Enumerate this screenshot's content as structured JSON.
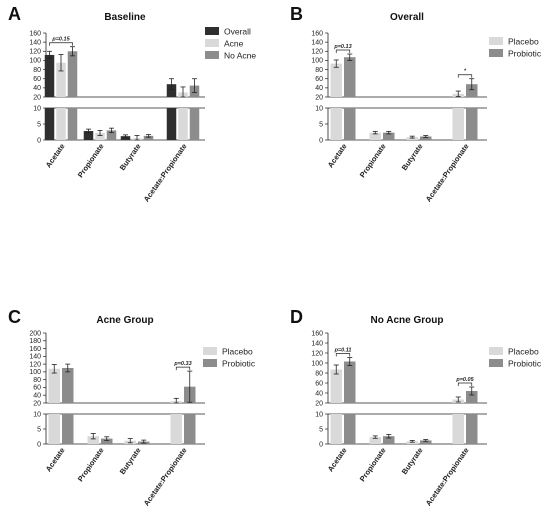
{
  "chart_data": [
    {
      "type": "bar",
      "panel": "A",
      "title": "Baseline",
      "categories": [
        "Acetate",
        "Propionate",
        "Butyrate",
        "Acetate:Propionate"
      ],
      "series": [
        {
          "name": "Overall",
          "values": [
            112,
            2.8,
            1.2,
            48
          ],
          "errors": [
            8,
            0.6,
            0.4,
            12
          ]
        },
        {
          "name": "Acne",
          "values": [
            95,
            2.2,
            0.6,
            30
          ],
          "errors": [
            18,
            0.8,
            0.8,
            12
          ]
        },
        {
          "name": "No Acne",
          "values": [
            120,
            3.0,
            1.3,
            45
          ],
          "errors": [
            10,
            0.7,
            0.4,
            15
          ]
        }
      ],
      "ylim_upper": [
        20,
        160
      ],
      "ylim_lower": [
        0,
        10
      ],
      "yticks_upper": [
        "20",
        "40",
        "60",
        "80",
        "100",
        "120",
        "140",
        "160"
      ],
      "yticks_lower": [
        "0",
        "5",
        "10"
      ],
      "annotations": [
        {
          "text": "p=0.15",
          "category": "Acetate"
        }
      ]
    },
    {
      "type": "bar",
      "panel": "B",
      "title": "Overall",
      "categories": [
        "Acetate",
        "Propionate",
        "Butyrate",
        "Acetate:Propionate"
      ],
      "series": [
        {
          "name": "Placebo",
          "values": [
            93,
            2.3,
            0.9,
            27
          ],
          "errors": [
            8,
            0.4,
            0.3,
            6
          ]
        },
        {
          "name": "Probiotic",
          "values": [
            107,
            2.3,
            1.1,
            48
          ],
          "errors": [
            7,
            0.4,
            0.3,
            12
          ]
        }
      ],
      "ylim_upper": [
        20,
        160
      ],
      "ylim_lower": [
        0,
        10
      ],
      "yticks_upper": [
        "20",
        "40",
        "60",
        "80",
        "100",
        "120",
        "140",
        "160"
      ],
      "yticks_lower": [
        "0",
        "5",
        "10"
      ],
      "annotations": [
        {
          "text": "p=0.13",
          "category": "Acetate"
        },
        {
          "text": "*",
          "category": "Acetate:Propionate"
        }
      ]
    },
    {
      "type": "bar",
      "panel": "C",
      "title": "Acne Group",
      "categories": [
        "Acetate",
        "Propionate",
        "Butyrate",
        "Acetate:Propionate"
      ],
      "series": [
        {
          "name": "Placebo",
          "values": [
            108,
            2.6,
            1.1,
            25
          ],
          "errors": [
            11,
            0.9,
            0.7,
            7
          ]
        },
        {
          "name": "Probiotic",
          "values": [
            110,
            1.8,
            0.8,
            62
          ],
          "errors": [
            10,
            0.6,
            0.5,
            40
          ]
        }
      ],
      "ylim_upper": [
        20,
        200
      ],
      "ylim_lower": [
        0,
        10
      ],
      "yticks_upper": [
        "20",
        "40",
        "60",
        "80",
        "100",
        "120",
        "140",
        "160",
        "180",
        "200"
      ],
      "yticks_lower": [
        "0",
        "5",
        "10"
      ],
      "annotations": [
        {
          "text": "p=0.33",
          "category": "Acetate:Propionate"
        }
      ]
    },
    {
      "type": "bar",
      "panel": "D",
      "title": "No Acne Group",
      "categories": [
        "Acetate",
        "Propionate",
        "Butyrate",
        "Acetate:Propionate"
      ],
      "series": [
        {
          "name": "Placebo",
          "values": [
            87,
            2.3,
            0.9,
            27
          ],
          "errors": [
            9,
            0.4,
            0.3,
            5
          ]
        },
        {
          "name": "Probiotic",
          "values": [
            103,
            2.6,
            1.2,
            44
          ],
          "errors": [
            8,
            0.6,
            0.3,
            8
          ]
        }
      ],
      "ylim_upper": [
        20,
        160
      ],
      "ylim_lower": [
        0,
        10
      ],
      "yticks_upper": [
        "20",
        "40",
        "60",
        "80",
        "100",
        "120",
        "140",
        "160"
      ],
      "yticks_lower": [
        "0",
        "5",
        "10"
      ],
      "annotations": [
        {
          "text": "p=0.11",
          "category": "Acetate"
        },
        {
          "text": "p=0.05",
          "category": "Acetate:Propionate"
        }
      ]
    }
  ],
  "colors": {
    "overall": "#2f2f2f",
    "acne": "#d9d9d9",
    "no_acne": "#8c8c8c",
    "placebo": "#d9d9d9",
    "probiotic": "#8c8c8c"
  }
}
